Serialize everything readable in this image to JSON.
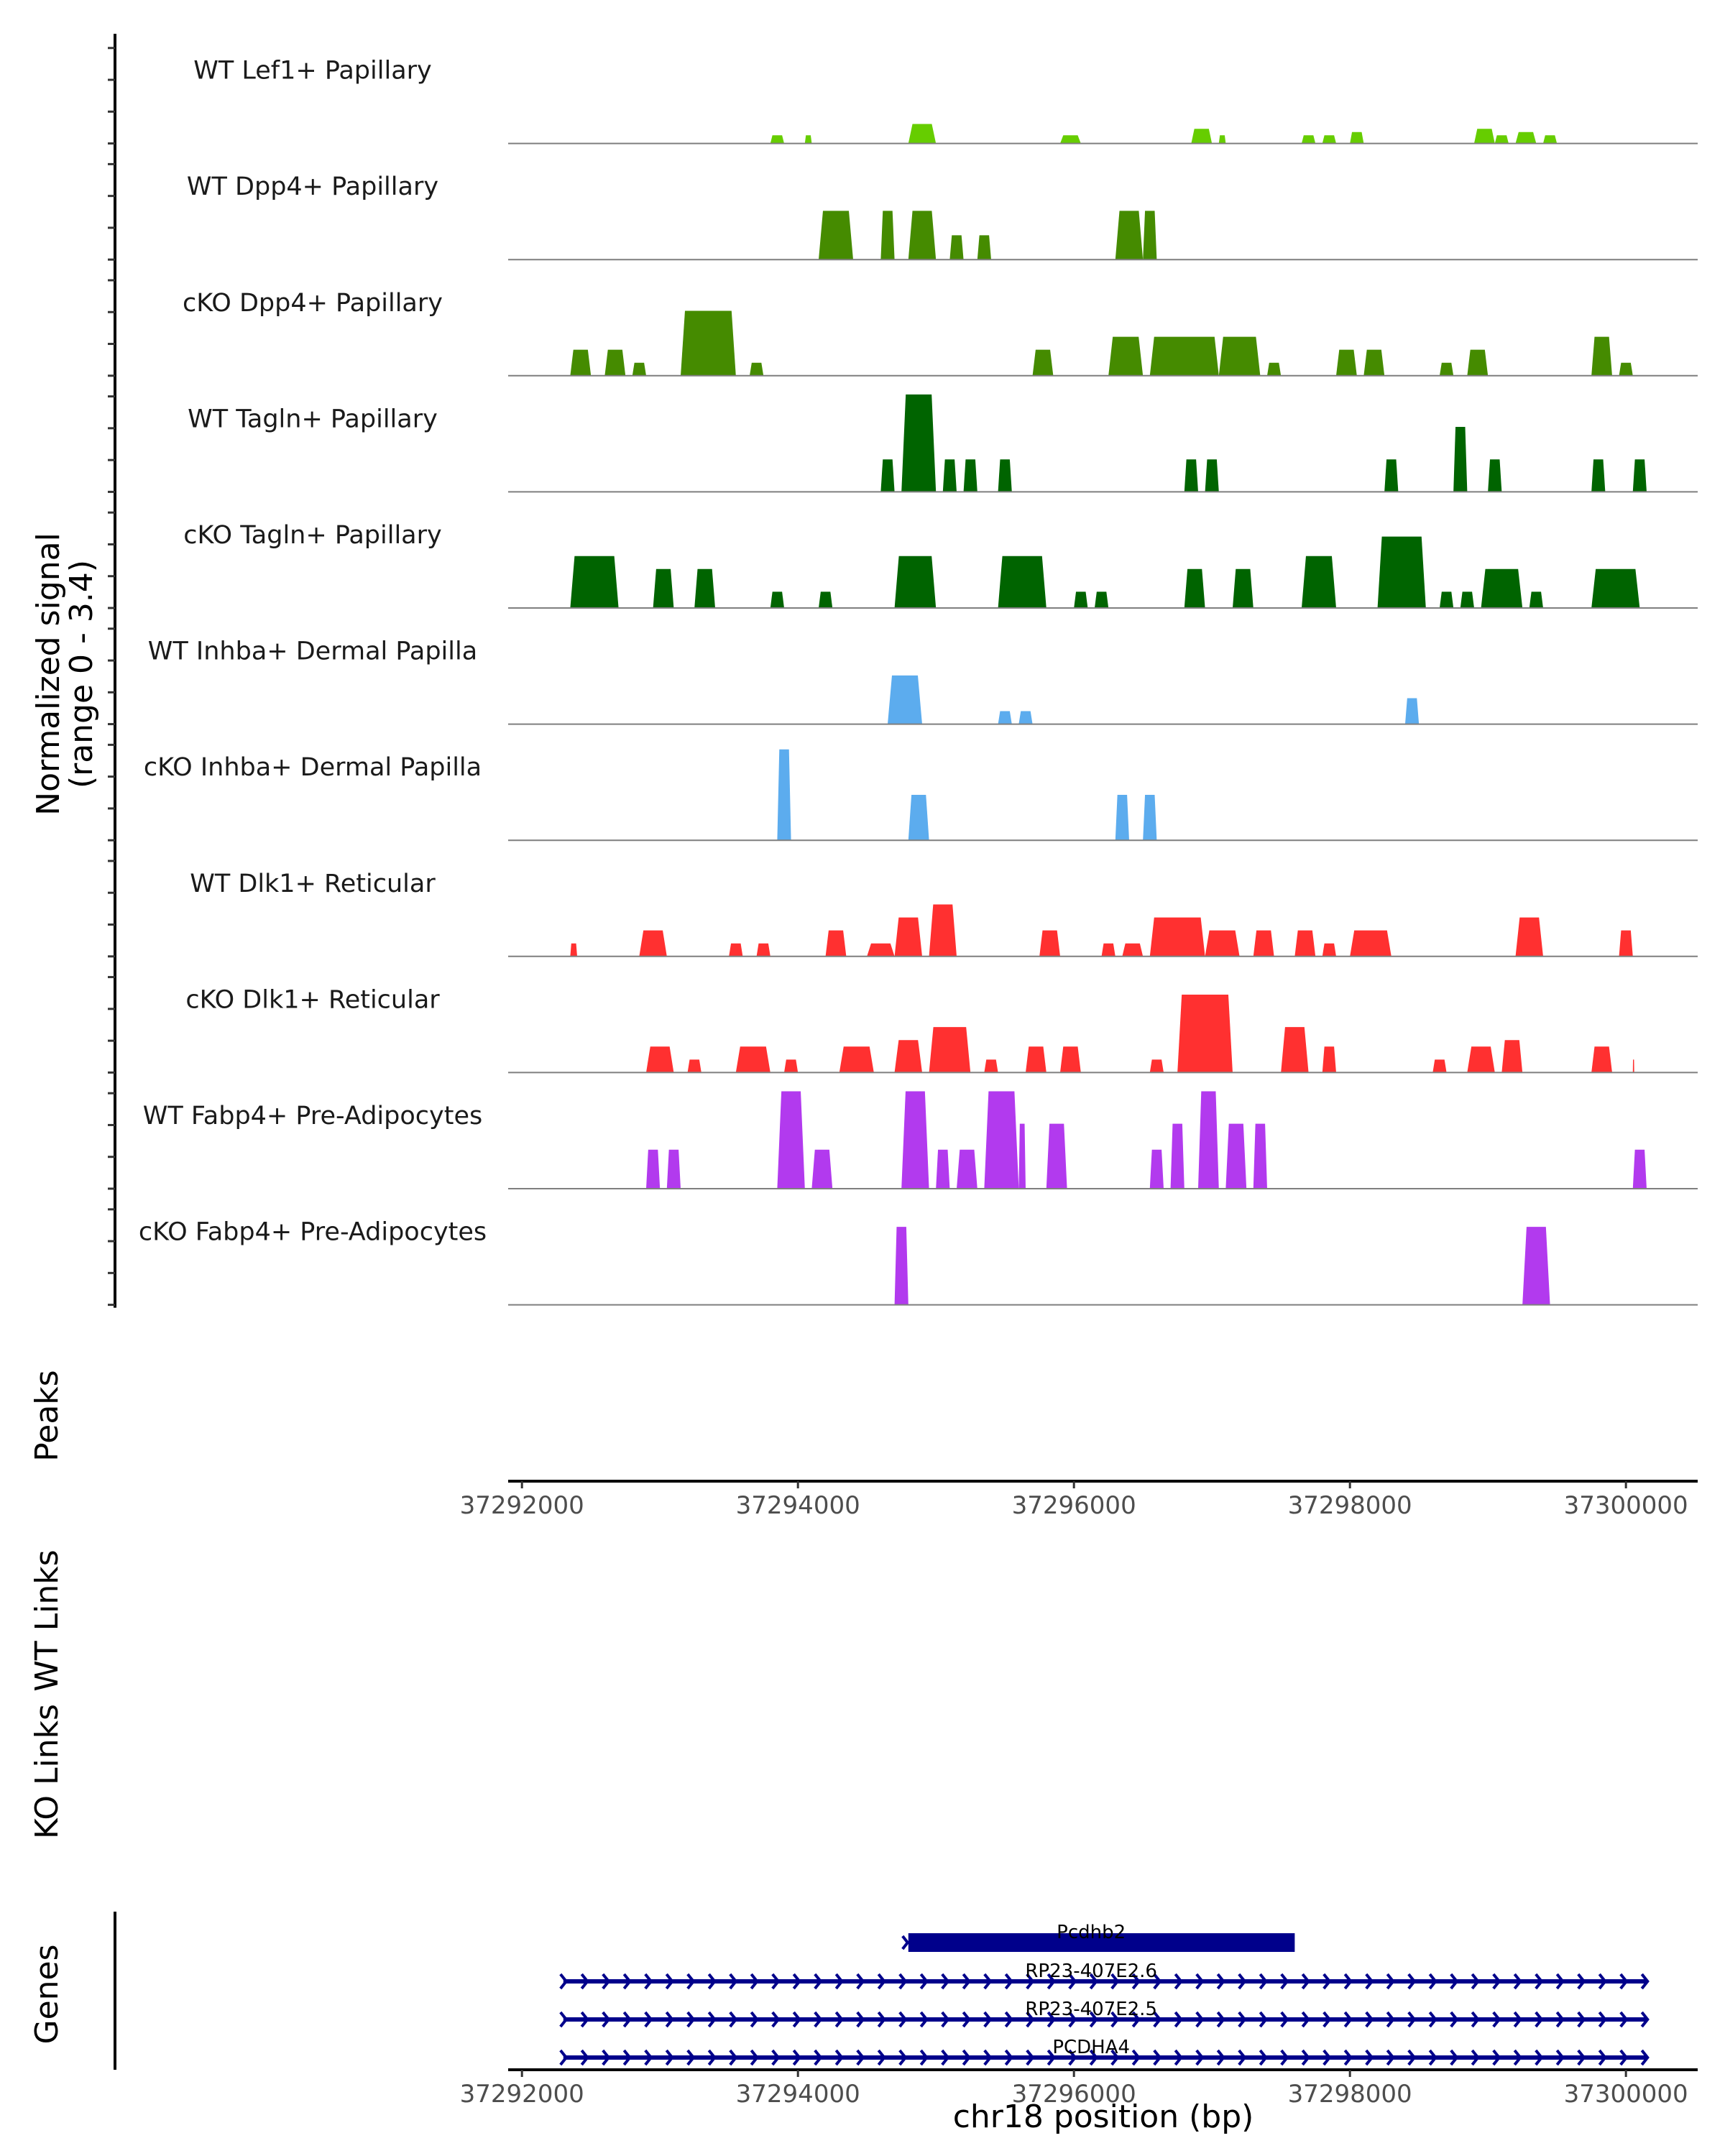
{
  "chart_data": {
    "type": "area",
    "title": "",
    "chromosome": "chr18",
    "xlabel": "chr18 position (bp)",
    "ylabel": "Normalized signal\n(range 0 - 3.4)",
    "ylabel_lines": [
      "Normalized signal",
      "(range 0 - 3.4)"
    ],
    "ylim": [
      0,
      3.4
    ],
    "xlim": [
      37291900,
      37300520
    ],
    "x_ticks": [
      37292000,
      37294000,
      37296000,
      37298000,
      37300000
    ],
    "x_tick_labels": [
      "37292000",
      "37294000",
      "37296000",
      "37298000",
      "37300000"
    ],
    "grid": false,
    "legend": "none",
    "series": [
      {
        "name": "WT Lef1+ Papillary",
        "color": "#66CD00",
        "peaks": [
          [
            37293800,
            37293900,
            0.25
          ],
          [
            37294050,
            37294100,
            0.25
          ],
          [
            37294800,
            37295000,
            0.6
          ],
          [
            37295900,
            37296050,
            0.25
          ],
          [
            37296850,
            37297000,
            0.45
          ],
          [
            37297050,
            37297100,
            0.25
          ],
          [
            37297650,
            37297750,
            0.25
          ],
          [
            37297800,
            37297900,
            0.25
          ],
          [
            37298000,
            37298100,
            0.35
          ],
          [
            37298900,
            37299050,
            0.45
          ],
          [
            37299050,
            37299150,
            0.25
          ],
          [
            37299200,
            37299350,
            0.35
          ],
          [
            37299400,
            37299500,
            0.25
          ]
        ]
      },
      {
        "name": "WT Dpp4+ Papillary",
        "color": "#458B00",
        "peaks": [
          [
            37294150,
            37294400,
            1.5
          ],
          [
            37294600,
            37294700,
            1.5
          ],
          [
            37294800,
            37295000,
            1.5
          ],
          [
            37295100,
            37295200,
            0.75
          ],
          [
            37295300,
            37295400,
            0.75
          ],
          [
            37296300,
            37296500,
            1.5
          ],
          [
            37296500,
            37296600,
            1.5
          ]
        ]
      },
      {
        "name": "cKO Dpp4+ Papillary",
        "color": "#458B00",
        "peaks": [
          [
            37292350,
            37292500,
            0.8
          ],
          [
            37292600,
            37292750,
            0.8
          ],
          [
            37292800,
            37292900,
            0.4
          ],
          [
            37293150,
            37293550,
            2.0
          ],
          [
            37293650,
            37293750,
            0.4
          ],
          [
            37295700,
            37295850,
            0.8
          ],
          [
            37296250,
            37296500,
            1.2
          ],
          [
            37296550,
            37297050,
            1.2
          ],
          [
            37297050,
            37297350,
            1.2
          ],
          [
            37297400,
            37297500,
            0.4
          ],
          [
            37297900,
            37298050,
            0.8
          ],
          [
            37298100,
            37298250,
            0.8
          ],
          [
            37298650,
            37298750,
            0.4
          ],
          [
            37298850,
            37299000,
            0.8
          ],
          [
            37299750,
            37299900,
            1.2
          ],
          [
            37299950,
            37300050,
            0.4
          ]
        ]
      },
      {
        "name": "WT Tagln+ Papillary",
        "color": "#006400",
        "peaks": [
          [
            37294600,
            37294700,
            1.0
          ],
          [
            37294750,
            37295000,
            3.0
          ],
          [
            37295050,
            37295150,
            1.0
          ],
          [
            37295200,
            37295300,
            1.0
          ],
          [
            37295450,
            37295550,
            1.0
          ],
          [
            37296800,
            37296900,
            1.0
          ],
          [
            37296950,
            37297050,
            1.0
          ],
          [
            37298250,
            37298350,
            1.0
          ],
          [
            37298750,
            37298850,
            2.0
          ],
          [
            37299000,
            37299100,
            1.0
          ],
          [
            37299750,
            37299850,
            1.0
          ],
          [
            37300050,
            37300150,
            1.0
          ]
        ]
      },
      {
        "name": "cKO Tagln+ Papillary",
        "color": "#006400",
        "peaks": [
          [
            37292350,
            37292700,
            1.6
          ],
          [
            37292950,
            37293100,
            1.2
          ],
          [
            37293250,
            37293400,
            1.2
          ],
          [
            37293800,
            37293900,
            0.5
          ],
          [
            37294150,
            37294250,
            0.5
          ],
          [
            37294700,
            37295000,
            1.6
          ],
          [
            37295450,
            37295800,
            1.6
          ],
          [
            37296000,
            37296100,
            0.5
          ],
          [
            37296150,
            37296250,
            0.5
          ],
          [
            37296800,
            37296950,
            1.2
          ],
          [
            37297150,
            37297300,
            1.2
          ],
          [
            37297650,
            37297900,
            1.6
          ],
          [
            37298200,
            37298550,
            2.2
          ],
          [
            37298650,
            37298750,
            0.5
          ],
          [
            37298800,
            37298900,
            0.5
          ],
          [
            37298950,
            37299250,
            1.2
          ],
          [
            37299300,
            37299400,
            0.5
          ],
          [
            37299750,
            37300100,
            1.2
          ]
        ]
      },
      {
        "name": "WT Inhba+ Dermal Papilla",
        "color": "#5CACEE",
        "peaks": [
          [
            37294650,
            37294900,
            1.5
          ],
          [
            37295450,
            37295550,
            0.4
          ],
          [
            37295600,
            37295700,
            0.4
          ],
          [
            37298400,
            37298500,
            0.8
          ]
        ]
      },
      {
        "name": "cKO Inhba+ Dermal Papilla",
        "color": "#5CACEE",
        "peaks": [
          [
            37293850,
            37293950,
            2.8
          ],
          [
            37294800,
            37294950,
            1.4
          ],
          [
            37296300,
            37296400,
            1.4
          ],
          [
            37296500,
            37296600,
            1.4
          ]
        ]
      },
      {
        "name": "WT Dlk1+ Reticular",
        "color": "#FF3030",
        "peaks": [
          [
            37292350,
            37292400,
            0.4
          ],
          [
            37292850,
            37293050,
            0.8
          ],
          [
            37293500,
            37293600,
            0.4
          ],
          [
            37293700,
            37293800,
            0.4
          ],
          [
            37294200,
            37294350,
            0.8
          ],
          [
            37294500,
            37294700,
            0.4
          ],
          [
            37294700,
            37294900,
            1.2
          ],
          [
            37294950,
            37295150,
            1.6
          ],
          [
            37295750,
            37295900,
            0.8
          ],
          [
            37296200,
            37296300,
            0.4
          ],
          [
            37296350,
            37296500,
            0.4
          ],
          [
            37296550,
            37296950,
            1.2
          ],
          [
            37296950,
            37297200,
            0.8
          ],
          [
            37297300,
            37297450,
            0.8
          ],
          [
            37297600,
            37297750,
            0.8
          ],
          [
            37297800,
            37297900,
            0.4
          ],
          [
            37298000,
            37298300,
            0.8
          ],
          [
            37299200,
            37299400,
            1.2
          ],
          [
            37299950,
            37300050,
            0.8
          ]
        ]
      },
      {
        "name": "cKO Dlk1+ Reticular",
        "color": "#FF3030",
        "peaks": [
          [
            37292900,
            37293100,
            0.8
          ],
          [
            37293200,
            37293300,
            0.4
          ],
          [
            37293550,
            37293800,
            0.8
          ],
          [
            37293900,
            37294000,
            0.4
          ],
          [
            37294300,
            37294550,
            0.8
          ],
          [
            37294700,
            37294900,
            1.0
          ],
          [
            37294950,
            37295250,
            1.4
          ],
          [
            37295350,
            37295450,
            0.4
          ],
          [
            37295650,
            37295800,
            0.8
          ],
          [
            37295900,
            37296050,
            0.8
          ],
          [
            37296550,
            37296650,
            0.4
          ],
          [
            37296750,
            37297150,
            2.4
          ],
          [
            37297500,
            37297700,
            1.4
          ],
          [
            37297800,
            37297900,
            0.8
          ],
          [
            37298600,
            37298700,
            0.4
          ],
          [
            37298850,
            37299050,
            0.8
          ],
          [
            37299100,
            37299250,
            1.0
          ],
          [
            37299750,
            37299900,
            0.8
          ],
          [
            37300050,
            37300060,
            0.4
          ]
        ]
      },
      {
        "name": "WT Fabp4+ Pre-Adipocytes",
        "color": "#B23AEE",
        "peaks": [
          [
            37292900,
            37293000,
            1.2
          ],
          [
            37293050,
            37293150,
            1.2
          ],
          [
            37293850,
            37294050,
            3.0
          ],
          [
            37294100,
            37294250,
            1.2
          ],
          [
            37294750,
            37294950,
            3.0
          ],
          [
            37295000,
            37295100,
            1.2
          ],
          [
            37295150,
            37295300,
            1.2
          ],
          [
            37295350,
            37295600,
            3.0
          ],
          [
            37295600,
            37295650,
            2.0
          ],
          [
            37295800,
            37295950,
            2.0
          ],
          [
            37296550,
            37296650,
            1.2
          ],
          [
            37296700,
            37296800,
            2.0
          ],
          [
            37296900,
            37297050,
            3.0
          ],
          [
            37297100,
            37297250,
            2.0
          ],
          [
            37297300,
            37297400,
            2.0
          ],
          [
            37300050,
            37300150,
            1.2
          ]
        ]
      },
      {
        "name": "cKO Fabp4+ Pre-Adipocytes",
        "color": "#B23AEE",
        "peaks": [
          [
            37294700,
            37294800,
            2.4
          ],
          [
            37299250,
            37299450,
            2.4
          ]
        ]
      }
    ],
    "side_tracks": [
      "Peaks",
      "WT Links",
      "KO Links"
    ],
    "genes": [
      {
        "name": "Pcdhb2",
        "start": 37294800,
        "end": 37297600,
        "strand": "+",
        "style": "thick"
      },
      {
        "name": "RP23-407E2.6",
        "start": 37292300,
        "end": 37300150,
        "strand": "+",
        "style": "thin"
      },
      {
        "name": "RP23-407E2.5",
        "start": 37292300,
        "end": 37300150,
        "strand": "+",
        "style": "thin"
      },
      {
        "name": "PCDHA4",
        "start": 37292300,
        "end": 37300150,
        "strand": "+",
        "style": "thin"
      }
    ],
    "gene_track_label": "Genes",
    "gene_color": "#00008B"
  }
}
